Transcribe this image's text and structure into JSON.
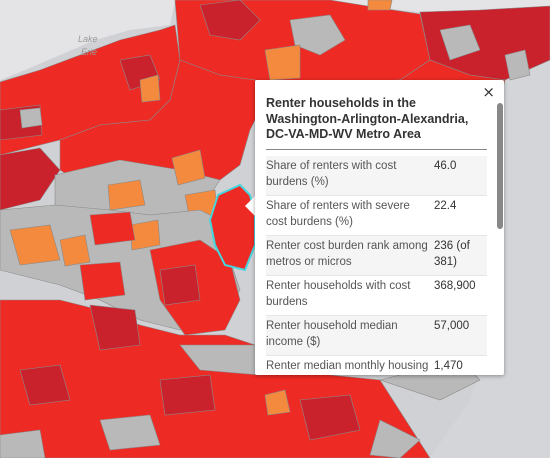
{
  "map": {
    "lake_label_1": "Lake",
    "lake_label_2": "Erie",
    "colors": {
      "high": "#ee2a24",
      "very_high": "#c9222d",
      "medium": "#f48a3d",
      "na": "#b9b9b9",
      "water": "#e3e3e6",
      "borders": "#888888",
      "highlight": "#46d4dd"
    }
  },
  "popup": {
    "close_icon": "×",
    "title": "Renter households in the Washington-Arlington-Alexandria, DC-VA-MD-WV Metro Area",
    "rows": [
      {
        "label": "Share of renters with cost burdens (%)",
        "value": "46.0"
      },
      {
        "label": "Share of renters with severe cost burdens (%)",
        "value": "22.4"
      },
      {
        "label": "Renter cost burden rank among metros or micros",
        "value": "236 (of 381)"
      },
      {
        "label": "Renter households with cost burdens",
        "value": "368,900"
      },
      {
        "label": "Renter household median income ($)",
        "value": "57,000"
      },
      {
        "label": "Renter median monthly housing costs ($)",
        "value": "1,470"
      }
    ]
  }
}
